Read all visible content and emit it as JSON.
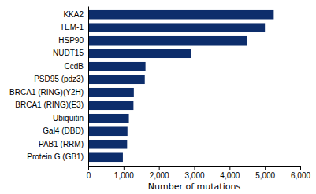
{
  "chart_data": {
    "type": "bar",
    "orientation": "horizontal",
    "categories": [
      "Protein G (GB1)",
      "PAB1 (RRM)",
      "Gal4 (DBD)",
      "Ubiquitin",
      "BRCA1 (RING)(E3)",
      "BRCA1 (RING)(Y2H)",
      "PSD95 (pdz3)",
      "CcdB",
      "NUDT15",
      "HSP90",
      "TEM-1",
      "KKA2"
    ],
    "values": [
      980,
      1100,
      1110,
      1150,
      1280,
      1290,
      1600,
      1620,
      2900,
      4500,
      5000,
      5250
    ],
    "color": "#0d2d6b",
    "xlabel": "Number of mutations",
    "xlim": [
      0,
      6000
    ],
    "xticks": [
      0,
      {
        "value": 1000,
        "label": "1,000"
      },
      {
        "value": 2000,
        "label": "2,000"
      },
      {
        "value": 3000,
        "label": "3,000"
      },
      {
        "value": 4000,
        "label": "4,000"
      },
      {
        "value": 5000,
        "label": "5,000"
      },
      {
        "value": 6000,
        "label": "6,000"
      }
    ],
    "grid": false
  }
}
